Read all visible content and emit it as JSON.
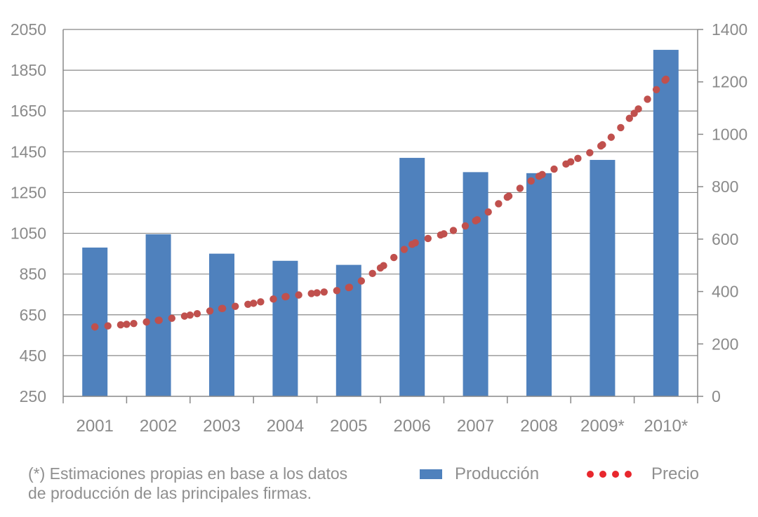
{
  "colors": {
    "bar": "#4f81bd",
    "line": "#c0504d",
    "legend_dot": "#e8272d",
    "grid": "#888888",
    "text": "#8a8a8a"
  },
  "chart_data": {
    "type": "bar",
    "title": "",
    "xlabel": "",
    "ylabel": "",
    "categories": [
      "2001",
      "2002",
      "2003",
      "2004",
      "2005",
      "2006",
      "2007",
      "2008",
      "2009*",
      "2010*"
    ],
    "ylim": [
      250,
      2050
    ],
    "yticks": [
      2050,
      1850,
      1650,
      1450,
      1250,
      1050,
      850,
      650,
      450,
      250
    ],
    "y2lim": [
      0,
      1400
    ],
    "y2ticks": [
      1400,
      1200,
      1000,
      800,
      600,
      400,
      200,
      0
    ],
    "grid": true,
    "legend_position": "bottom",
    "series": [
      {
        "name": "Producción",
        "type": "bar",
        "axis": "left",
        "values": [
          980,
          1045,
          950,
          915,
          895,
          1420,
          1350,
          1345,
          1410,
          1950
        ]
      },
      {
        "name": "Precio",
        "type": "line",
        "style": "dotted",
        "axis": "right",
        "x": [
          2001,
          2001.5,
          2002,
          2002.5,
          2003,
          2003.5,
          2004,
          2004.5,
          2005,
          2005.5,
          2006,
          2006.5,
          2007,
          2007.5,
          2008,
          2008.5,
          2009,
          2009.5,
          2010
        ],
        "values": [
          265,
          275,
          290,
          310,
          335,
          355,
          380,
          395,
          415,
          490,
          580,
          620,
          670,
          760,
          840,
          895,
          960,
          1080,
          1210
        ]
      }
    ]
  },
  "footnote": {
    "line1": "(*) Estimaciones propias en base a los datos",
    "line2": "de producción de las principales firmas."
  },
  "legend": {
    "bar_label": "Producción",
    "line_label": "Precio"
  }
}
